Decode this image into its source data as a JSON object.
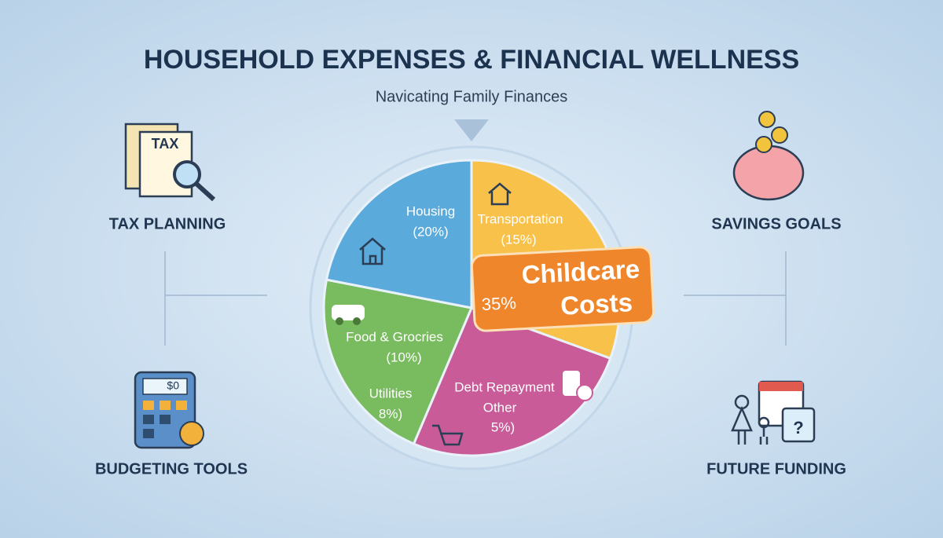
{
  "header": {
    "title": "HOUSEHOLD EXPENSES & FINANCIAL WELLNESS",
    "subtitle": "Navicating Family Finances"
  },
  "pie": {
    "slices": [
      {
        "label": "Housing",
        "percent": "(20%)"
      },
      {
        "label": "Transportation",
        "percent": "(15%)"
      },
      {
        "label": "Food & Grocries",
        "percent": "(10%)"
      },
      {
        "label": "Utilities",
        "percent": "8%)"
      },
      {
        "label": "Debt Repayment",
        "label2": "Other",
        "percent": "5%)"
      }
    ],
    "callout": {
      "line1": "Childcare",
      "line2": "Costs",
      "percent": "35%"
    }
  },
  "sides": [
    {
      "label": "TAX PLANNING",
      "icon_text": "TAX"
    },
    {
      "label": "SAVINGS GOALS"
    },
    {
      "label": "BUDGETING TOOLS",
      "icon_text": "$0"
    },
    {
      "label": "FUTURE FUNDING",
      "icon_text": "?"
    }
  ]
}
